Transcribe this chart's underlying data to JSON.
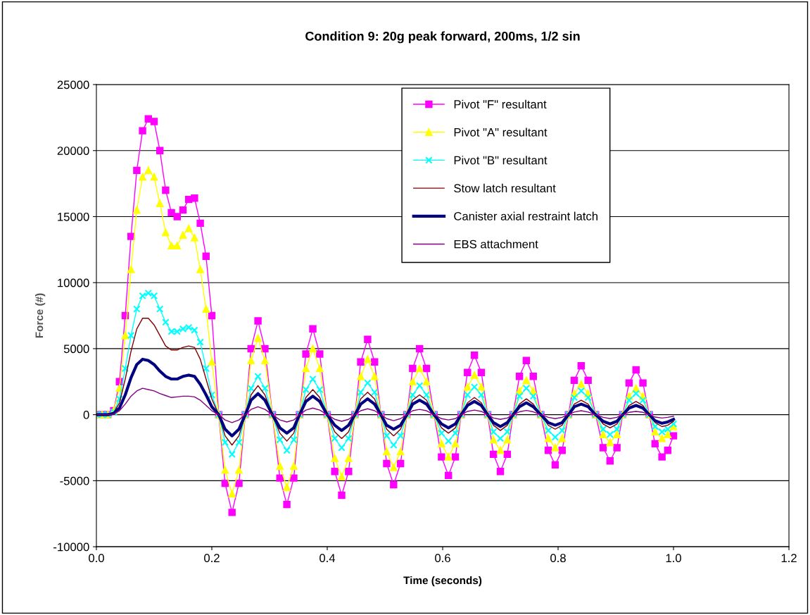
{
  "chart_data": {
    "type": "line",
    "title": "Condition 9: 20g peak forward, 200ms, 1/2 sin",
    "xlabel": "Time (seconds)",
    "ylabel": "Force (#)",
    "x": [
      0,
      0.01,
      0.02,
      0.03,
      0.04,
      0.05,
      0.06,
      0.07,
      0.08,
      0.09,
      0.1,
      0.11,
      0.12,
      0.13,
      0.14,
      0.15,
      0.16,
      0.17,
      0.18,
      0.19,
      0.2,
      0.212,
      0.223,
      0.235,
      0.247,
      0.258,
      0.268,
      0.28,
      0.292,
      0.305,
      0.318,
      0.33,
      0.342,
      0.352,
      0.363,
      0.375,
      0.387,
      0.4,
      0.413,
      0.425,
      0.437,
      0.448,
      0.458,
      0.47,
      0.482,
      0.493,
      0.503,
      0.515,
      0.527,
      0.538,
      0.548,
      0.56,
      0.572,
      0.585,
      0.598,
      0.61,
      0.622,
      0.632,
      0.643,
      0.655,
      0.667,
      0.678,
      0.688,
      0.7,
      0.712,
      0.722,
      0.733,
      0.745,
      0.757,
      0.77,
      0.783,
      0.795,
      0.807,
      0.818,
      0.828,
      0.84,
      0.852,
      0.865,
      0.878,
      0.89,
      0.902,
      0.912,
      0.923,
      0.935,
      0.947,
      0.958,
      0.968,
      0.98,
      0.99,
      1.0
    ],
    "series": [
      {
        "name": "Pivot \"F\" resultant",
        "color": "#ff00ff",
        "marker": "square",
        "values": [
          0,
          0,
          0,
          300,
          2500,
          7500,
          13500,
          18500,
          21500,
          22400,
          22200,
          20000,
          17000,
          15300,
          15000,
          15500,
          16300,
          16400,
          14500,
          12000,
          7500,
          0,
          -5200,
          -7400,
          -5200,
          0,
          5000,
          7100,
          5000,
          0,
          -4800,
          -6800,
          -4800,
          0,
          4600,
          6500,
          4600,
          0,
          -4300,
          -6100,
          -4300,
          0,
          4000,
          5700,
          4000,
          0,
          -3700,
          -5300,
          -3700,
          0,
          3500,
          5000,
          3500,
          0,
          -3200,
          -4600,
          -3200,
          0,
          3200,
          4500,
          3200,
          0,
          -3000,
          -4300,
          -3000,
          0,
          2900,
          4100,
          2900,
          0,
          -2700,
          -3800,
          -2700,
          0,
          2600,
          3700,
          2600,
          0,
          -2500,
          -3500,
          -2500,
          0,
          2400,
          3400,
          2400,
          0,
          -2200,
          -3200,
          -2700,
          -1600
        ]
      },
      {
        "name": "Pivot \"A\" resultant",
        "color": "#ffff00",
        "marker": "triangle",
        "values": [
          0,
          0,
          0,
          300,
          2000,
          6000,
          11000,
          15500,
          18000,
          18500,
          18000,
          16000,
          13800,
          12800,
          12800,
          13600,
          14100,
          13400,
          11000,
          8000,
          4000,
          0,
          -4200,
          -6000,
          -4200,
          0,
          4100,
          5800,
          4100,
          0,
          -3900,
          -5500,
          -3900,
          0,
          3500,
          5000,
          3500,
          0,
          -3300,
          -4700,
          -3300,
          0,
          2900,
          4200,
          2900,
          0,
          -2800,
          -4000,
          -2800,
          0,
          2500,
          3500,
          2500,
          0,
          -2200,
          -3200,
          -2200,
          0,
          2100,
          3000,
          2100,
          0,
          -1900,
          -2700,
          -1900,
          0,
          1800,
          2600,
          1800,
          0,
          -1800,
          -2500,
          -1800,
          0,
          1600,
          2300,
          1600,
          0,
          -1500,
          -2100,
          -1500,
          0,
          1400,
          2000,
          1400,
          0,
          -1300,
          -1800,
          -1500,
          -900
        ]
      },
      {
        "name": "Pivot \"B\" resultant",
        "color": "#00ffff",
        "marker": "cross",
        "values": [
          0,
          0,
          0,
          200,
          1200,
          3500,
          6000,
          8000,
          9000,
          9200,
          9000,
          8000,
          7000,
          6300,
          6300,
          6500,
          6600,
          6400,
          5500,
          3500,
          1500,
          0,
          -2100,
          -3000,
          -2100,
          0,
          2000,
          2900,
          2000,
          0,
          -1900,
          -2700,
          -1900,
          0,
          1900,
          2700,
          1900,
          0,
          -1800,
          -2500,
          -1800,
          0,
          1700,
          2400,
          1700,
          0,
          -1600,
          -2300,
          -1600,
          0,
          1500,
          2200,
          1500,
          0,
          -1400,
          -2000,
          -1400,
          0,
          1500,
          2100,
          1500,
          0,
          -1300,
          -1800,
          -1300,
          0,
          1400,
          2000,
          1400,
          0,
          -1200,
          -1700,
          -1200,
          0,
          1300,
          1800,
          1300,
          0,
          -1100,
          -1500,
          -1100,
          0,
          1100,
          1600,
          1100,
          0,
          -900,
          -1300,
          -1100,
          -700
        ]
      },
      {
        "name": "Stow latch resultant",
        "color": "#800000",
        "marker": "none",
        "values": [
          null,
          null,
          0,
          150,
          900,
          2700,
          4800,
          6500,
          7300,
          7300,
          6800,
          6000,
          5200,
          4900,
          4900,
          5100,
          5200,
          5100,
          4200,
          2700,
          1200,
          0,
          -1600,
          -2300,
          -1600,
          0,
          1500,
          2200,
          1500,
          0,
          -1400,
          -2000,
          -1400,
          0,
          1300,
          1900,
          1300,
          0,
          -1300,
          -1800,
          -1300,
          0,
          1200,
          1700,
          1200,
          0,
          -1100,
          -1600,
          -1100,
          0,
          1100,
          1500,
          1100,
          0,
          -1000,
          -1400,
          -1000,
          0,
          900,
          1300,
          900,
          0,
          -800,
          -1200,
          -800,
          0,
          800,
          1200,
          800,
          0,
          -800,
          -1100,
          -800,
          0,
          800,
          1100,
          800,
          0,
          -700,
          -1000,
          -700,
          0,
          700,
          1000,
          700,
          0,
          -600,
          -900,
          -800,
          -500
        ]
      },
      {
        "name": "Canister axial restraint latch",
        "color": "#000080",
        "marker": "none",
        "values": [
          0,
          0,
          0,
          100,
          500,
          1500,
          2800,
          3800,
          4200,
          4100,
          3800,
          3300,
          2900,
          2700,
          2700,
          2900,
          3000,
          2900,
          2300,
          1500,
          600,
          0,
          -1100,
          -1600,
          -1100,
          0,
          1100,
          1600,
          1100,
          0,
          -1000,
          -1400,
          -1000,
          0,
          1000,
          1400,
          1000,
          0,
          -800,
          -1200,
          -800,
          0,
          800,
          1200,
          800,
          0,
          -800,
          -1100,
          -800,
          0,
          800,
          1100,
          800,
          0,
          -700,
          -1000,
          -700,
          0,
          700,
          1000,
          700,
          0,
          -600,
          -900,
          -600,
          0,
          600,
          900,
          600,
          0,
          -600,
          -800,
          -600,
          0,
          600,
          800,
          600,
          0,
          -500,
          -700,
          -500,
          0,
          500,
          700,
          500,
          0,
          -450,
          -650,
          -550,
          -350
        ]
      },
      {
        "name": "EBS attachment",
        "color": "#800080",
        "marker": "none",
        "values": [
          0,
          0,
          0,
          50,
          300,
          800,
          1400,
          1800,
          2000,
          1900,
          1800,
          1600,
          1450,
          1300,
          1350,
          1400,
          1400,
          1350,
          1100,
          700,
          300,
          0,
          -400,
          -600,
          -400,
          0,
          400,
          600,
          400,
          0,
          -400,
          -550,
          -400,
          0,
          350,
          500,
          350,
          0,
          -350,
          -500,
          -350,
          0,
          300,
          450,
          300,
          0,
          -300,
          -450,
          -300,
          0,
          300,
          400,
          300,
          0,
          -300,
          -400,
          -300,
          0,
          250,
          350,
          250,
          0,
          -250,
          -350,
          -250,
          0,
          220,
          320,
          220,
          0,
          -200,
          -300,
          -200,
          0,
          200,
          300,
          200,
          0,
          -200,
          -300,
          -200,
          0,
          180,
          250,
          180,
          0,
          -180,
          -250,
          -200,
          -120
        ]
      }
    ],
    "xlim": [
      0,
      1.2
    ],
    "xticks": [
      {
        "value": 0,
        "label": "0.0"
      },
      {
        "value": 0.2,
        "label": "0.2"
      },
      {
        "value": 0.4,
        "label": "0.4"
      },
      {
        "value": 0.6,
        "label": "0.6"
      },
      {
        "value": 0.8,
        "label": "0.8"
      },
      {
        "value": 1.0,
        "label": "1.0"
      },
      {
        "value": 1.2,
        "label": "1.2"
      }
    ],
    "ylim": [
      -10000,
      25000
    ],
    "yticks": [
      -10000,
      -5000,
      0,
      5000,
      10000,
      15000,
      20000,
      25000
    ],
    "grid": "y",
    "legend": "top right"
  }
}
